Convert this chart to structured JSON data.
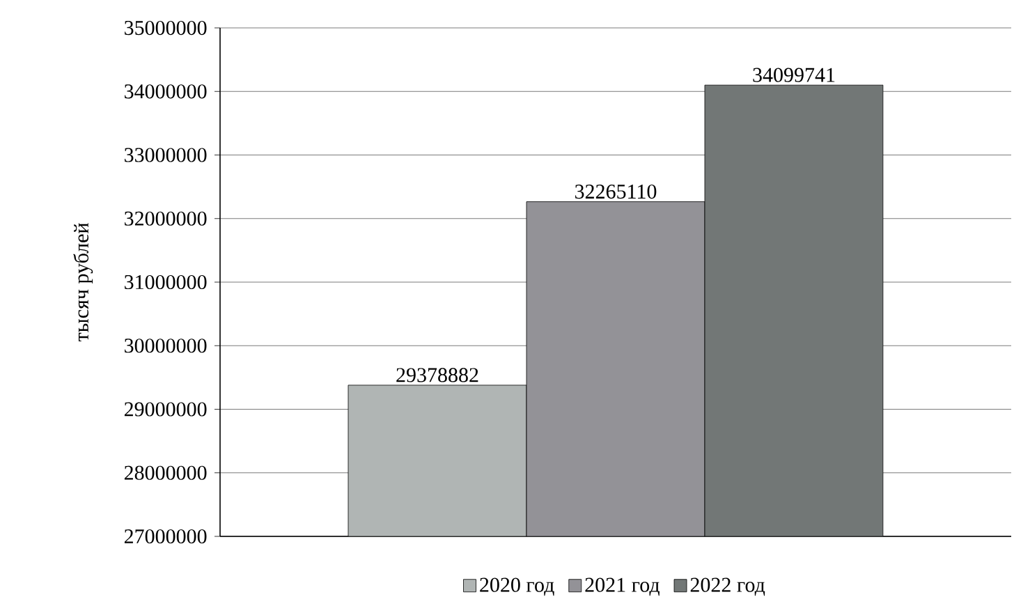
{
  "chart_data": {
    "type": "bar",
    "ylabel": "тысяч рублей",
    "categories": [
      null
    ],
    "series": [
      {
        "name": "2020 год",
        "color": "#b0b5b4",
        "values": [
          29378882
        ]
      },
      {
        "name": "2021 год",
        "color": "#939297",
        "values": [
          32265110
        ]
      },
      {
        "name": "2022 год",
        "color": "#727776",
        "values": [
          34099741
        ]
      }
    ],
    "ylim": [
      27000000,
      35000000
    ],
    "yticks": [
      27000000,
      28000000,
      29000000,
      30000000,
      31000000,
      32000000,
      33000000,
      34000000,
      35000000
    ],
    "grid": "y",
    "legend": "bottom",
    "data_labels": true
  }
}
